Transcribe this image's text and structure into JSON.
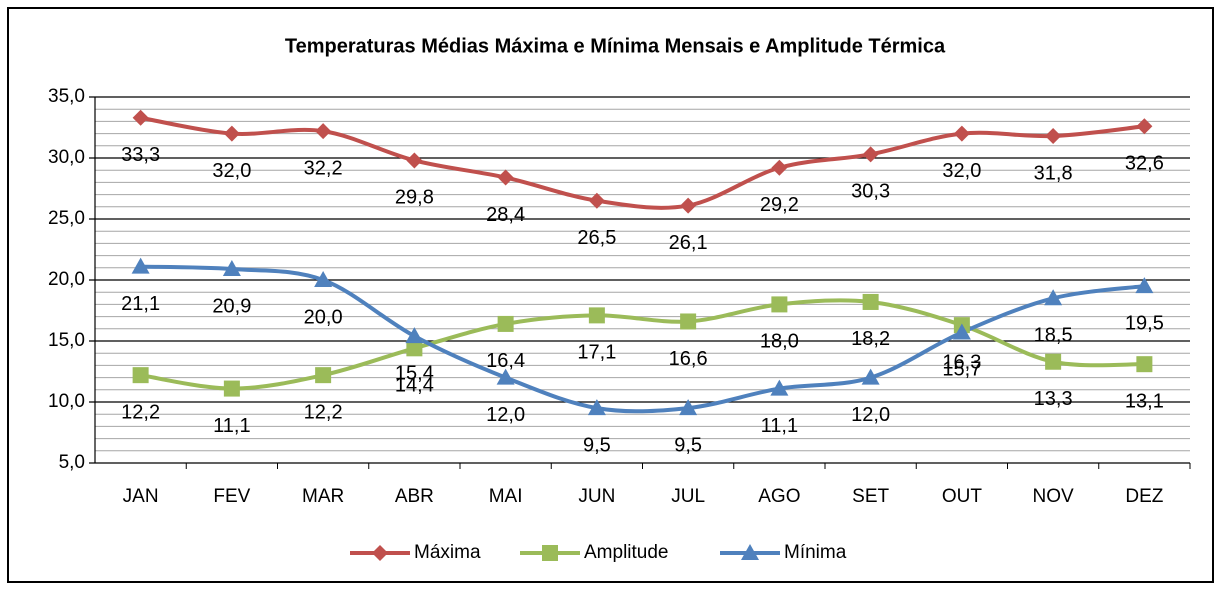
{
  "chart_data": {
    "type": "line",
    "title": "Temperaturas Médias Máxima e Mínima Mensais e Amplitude Térmica",
    "categories": [
      "JAN",
      "FEV",
      "MAR",
      "ABR",
      "MAI",
      "JUN",
      "JUL",
      "AGO",
      "SET",
      "OUT",
      "NOV",
      "DEZ"
    ],
    "series": [
      {
        "name": "Máxima",
        "color": "#c0504d",
        "marker": "diamond",
        "values": [
          33.3,
          32.0,
          32.2,
          29.8,
          28.4,
          26.5,
          26.1,
          29.2,
          30.3,
          32.0,
          31.8,
          32.6
        ],
        "value_labels": [
          "33,3",
          "32,0",
          "32,2",
          "29,8",
          "28,4",
          "26,5",
          "26,1",
          "29,2",
          "30,3",
          "32,0",
          "31,8",
          "32,6"
        ]
      },
      {
        "name": "Amplitude",
        "color": "#9bbb59",
        "marker": "square",
        "values": [
          12.2,
          11.1,
          12.2,
          14.4,
          16.4,
          17.1,
          16.6,
          18.0,
          18.2,
          16.3,
          13.3,
          13.1
        ],
        "value_labels": [
          "12,2",
          "11,1",
          "12,2",
          "14,4",
          "16,4",
          "17,1",
          "16,6",
          "18,0",
          "18,2",
          "16,3",
          "13,3",
          "13,1"
        ]
      },
      {
        "name": "Mínima",
        "color": "#4f81bd",
        "marker": "triangle",
        "values": [
          21.1,
          20.9,
          20.0,
          15.4,
          12.0,
          9.5,
          9.5,
          11.1,
          12.0,
          15.7,
          18.5,
          19.5
        ],
        "value_labels": [
          "21,1",
          "20,9",
          "20,0",
          "15,4",
          "12,0",
          "9,5",
          "9,5",
          "11,1",
          "12,0",
          "15,7",
          "18,5",
          "19,5"
        ]
      }
    ],
    "ylim": [
      5,
      35
    ],
    "yticks": [
      {
        "value": 5,
        "label": "5,0"
      },
      {
        "value": 10,
        "label": "10,0"
      },
      {
        "value": 15,
        "label": "15,0"
      },
      {
        "value": 20,
        "label": "20,0"
      },
      {
        "value": 25,
        "label": "25,0"
      },
      {
        "value": 30,
        "label": "30,0"
      },
      {
        "value": 35,
        "label": "35,0"
      }
    ],
    "grid": true,
    "minor_grid": true,
    "smooth": true,
    "legend": "bottom"
  }
}
